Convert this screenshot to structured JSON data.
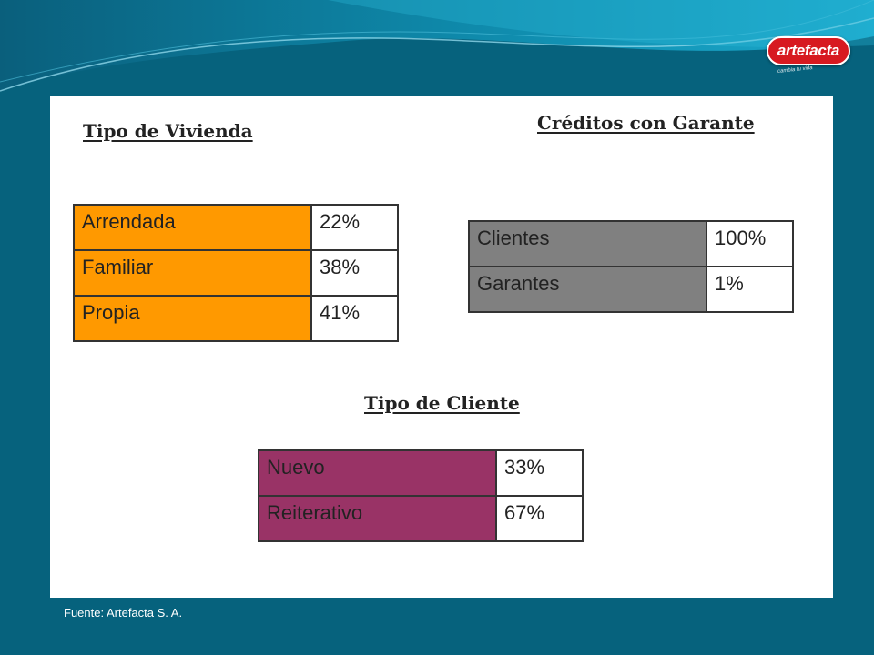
{
  "logo": {
    "text": "artefacta",
    "tagline": "cambia tu vida"
  },
  "colors": {
    "background": "#06627d",
    "vivienda": "#ff9900",
    "garante": "#808080",
    "cliente": "#993366"
  },
  "vivienda": {
    "title": "Tipo de Vivienda",
    "rows": [
      {
        "label": "Arrendada",
        "value": "22%"
      },
      {
        "label": "Familiar",
        "value": "38%"
      },
      {
        "label": "Propia",
        "value": "41%"
      }
    ]
  },
  "garante": {
    "title": "Créditos con Garante",
    "rows": [
      {
        "label": "Clientes",
        "value": "100%"
      },
      {
        "label": "Garantes",
        "value": "1%"
      }
    ]
  },
  "cliente": {
    "title": "Tipo de Cliente",
    "rows": [
      {
        "label": "Nuevo",
        "value": "33%"
      },
      {
        "label": "Reiterativo",
        "value": "67%"
      }
    ]
  },
  "footer": {
    "source": "Fuente: Artefacta S. A."
  }
}
